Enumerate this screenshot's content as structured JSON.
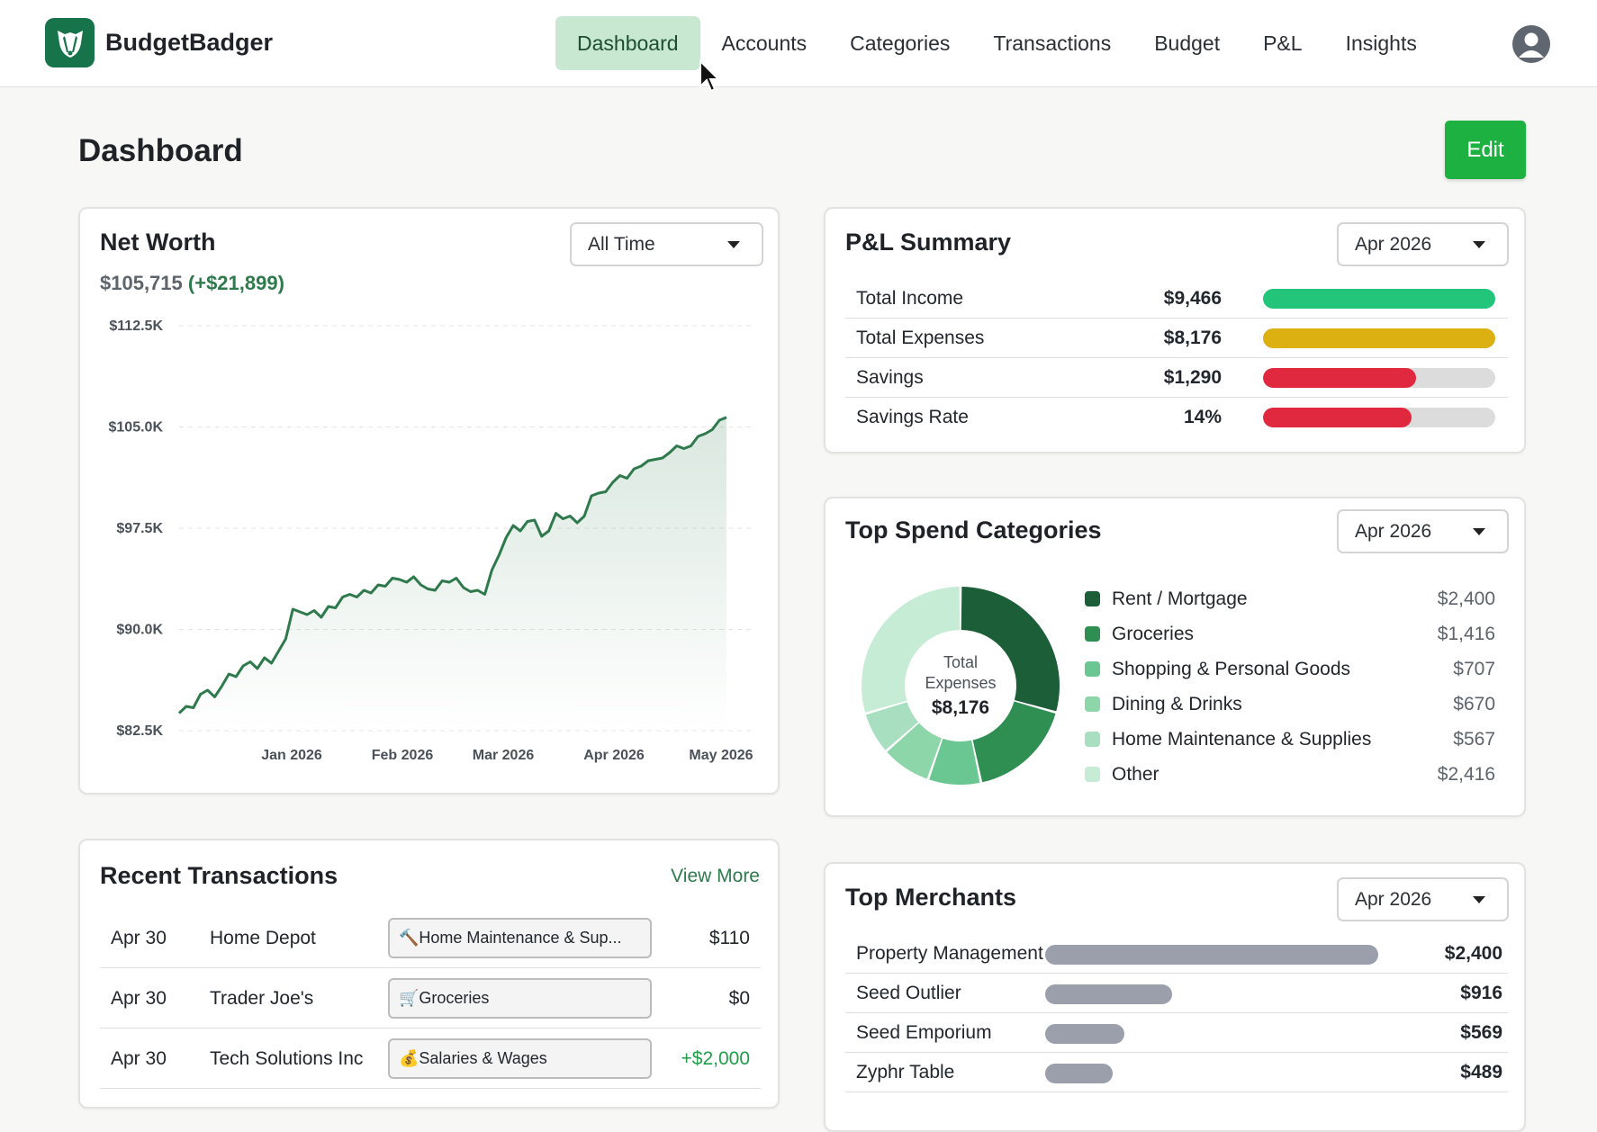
{
  "app": {
    "name": "BudgetBadger"
  },
  "nav": {
    "items": [
      {
        "label": "Dashboard",
        "active": true
      },
      {
        "label": "Accounts",
        "active": false
      },
      {
        "label": "Categories",
        "active": false
      },
      {
        "label": "Transactions",
        "active": false
      },
      {
        "label": "Budget",
        "active": false
      },
      {
        "label": "P&L",
        "active": false
      },
      {
        "label": "Insights",
        "active": false
      }
    ]
  },
  "page": {
    "title": "Dashboard",
    "edit_label": "Edit"
  },
  "net_worth": {
    "title": "Net Worth",
    "range": "All Time",
    "value": "$105,715",
    "delta": "(+$21,899)",
    "line_color": "#2f7a4d"
  },
  "chart_data": {
    "type": "area",
    "title": "",
    "xlabel": "",
    "ylabel": "",
    "ylim": [
      82500,
      112500
    ],
    "y_ticks": [
      "$112.5K",
      "$105.0K",
      "$97.5K",
      "$90.0K",
      "$82.5K"
    ],
    "x_ticks": [
      "Jan 2026",
      "Feb 2026",
      "Mar 2026",
      "Apr 2026",
      "May 2026"
    ],
    "grid": true,
    "series": [
      {
        "values": [
          83800,
          84300,
          84200,
          85200,
          85500,
          85000,
          85800,
          86700,
          86500,
          87300,
          87600,
          87100,
          87900,
          87500,
          88400,
          89300,
          91500,
          91300,
          91100,
          91400,
          90900,
          91700,
          91600,
          92400,
          92600,
          92400,
          92900,
          92700,
          93300,
          93200,
          93800,
          93700,
          93500,
          93900,
          93300,
          93000,
          92900,
          93600,
          93500,
          93800,
          93100,
          92800,
          92900,
          92600,
          94400,
          95500,
          96800,
          97700,
          97300,
          98000,
          98100,
          96900,
          97300,
          98600,
          98200,
          98400,
          97900,
          98400,
          99900,
          100100,
          100200,
          100900,
          101400,
          101200,
          101900,
          102100,
          102500,
          102600,
          102700,
          103100,
          103600,
          103400,
          103600,
          104300,
          104500,
          104800,
          105500,
          105715
        ]
      }
    ]
  },
  "pl_summary": {
    "title": "P&L Summary",
    "period": "Apr 2026",
    "rows": [
      {
        "label": "Total Income",
        "value": "$9,466",
        "fill": 1.0,
        "color": "#22c57a"
      },
      {
        "label": "Total Expenses",
        "value": "$8,176",
        "fill": 1.0,
        "color": "#ddb012"
      },
      {
        "label": "Savings",
        "value": "$1,290",
        "fill": 0.66,
        "color": "#e0293e"
      },
      {
        "label": "Savings Rate",
        "value": "14%",
        "fill": 0.64,
        "color": "#e0293e"
      }
    ]
  },
  "top_spend": {
    "title": "Top Spend Categories",
    "period": "Apr 2026",
    "center_label_1": "Total",
    "center_label_2": "Expenses",
    "center_value": "$8,176",
    "categories": [
      {
        "label": "Rent / Mortgage",
        "value": "$2,400",
        "amount": 2400,
        "color": "#1b5e38"
      },
      {
        "label": "Groceries",
        "value": "$1,416",
        "amount": 1416,
        "color": "#2f8f52"
      },
      {
        "label": "Shopping & Personal Goods",
        "value": "$707",
        "amount": 707,
        "color": "#6bc792"
      },
      {
        "label": "Dining & Drinks",
        "value": "$670",
        "amount": 670,
        "color": "#8dd6a9"
      },
      {
        "label": "Home Maintenance & Supplies",
        "value": "$567",
        "amount": 567,
        "color": "#a8dfc0"
      },
      {
        "label": "Other",
        "value": "$2,416",
        "amount": 2416,
        "color": "#c6ecd6"
      }
    ]
  },
  "recent_transactions": {
    "title": "Recent Transactions",
    "view_more": "View More",
    "rows": [
      {
        "date": "Apr 30",
        "merchant": "Home Depot",
        "category": "🔨Home Maintenance & Sup...",
        "amount": "$110",
        "positive": false
      },
      {
        "date": "Apr 30",
        "merchant": "Trader Joe's",
        "category": "🛒Groceries",
        "amount": "$0",
        "positive": false
      },
      {
        "date": "Apr 30",
        "merchant": "Tech Solutions Inc",
        "category": "💰Salaries & Wages",
        "amount": "+$2,000",
        "positive": true
      }
    ]
  },
  "top_merchants": {
    "title": "Top Merchants",
    "period": "Apr 2026",
    "bar_color": "#9a9fab",
    "rows": [
      {
        "label": "Property Management",
        "value": "$2,400",
        "fill": 1.0
      },
      {
        "label": "Seed Outlier",
        "value": "$916",
        "fill": 0.38
      },
      {
        "label": "Seed Emporium",
        "value": "$569",
        "fill": 0.237
      },
      {
        "label": "Zyphr Table",
        "value": "$489",
        "fill": 0.204
      }
    ]
  }
}
